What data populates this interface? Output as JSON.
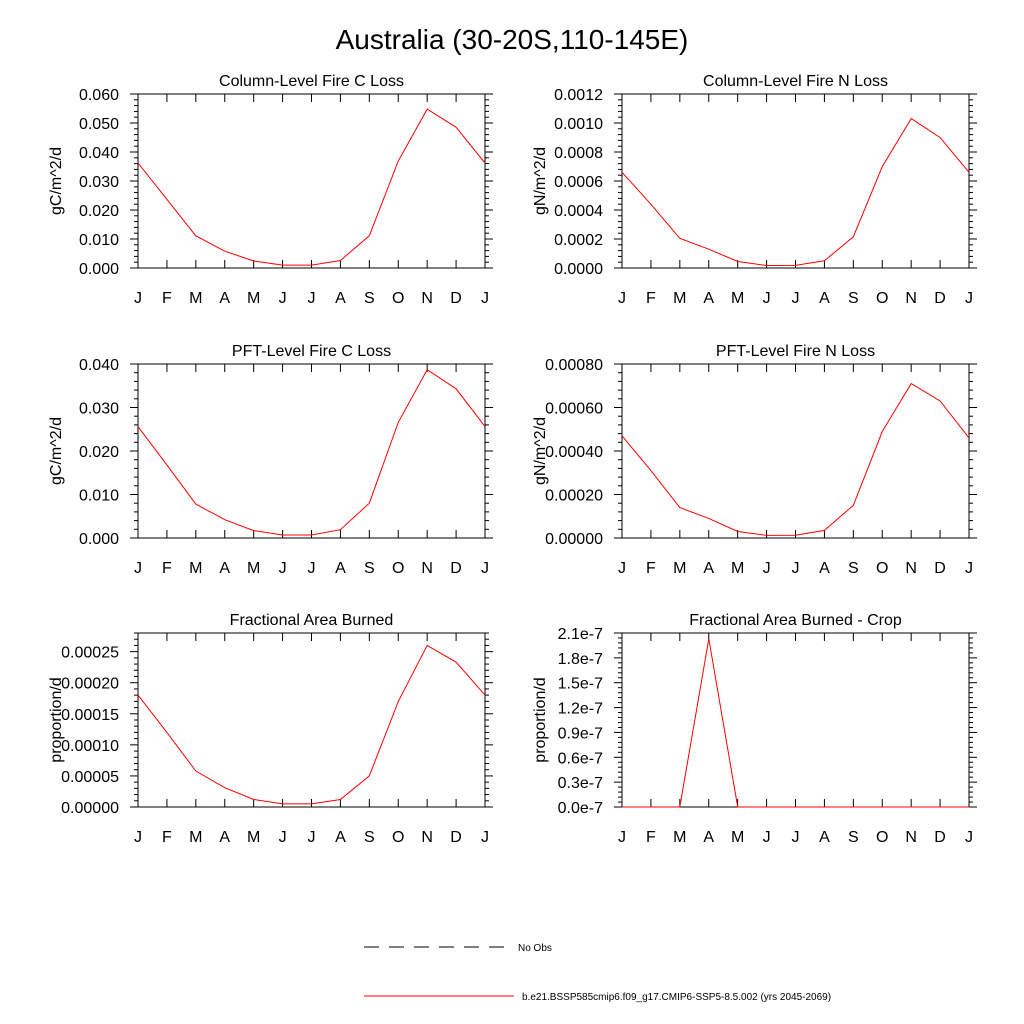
{
  "figure": {
    "title": "Australia (30-20S,110-145E)"
  },
  "legend": {
    "entries": [
      {
        "label": "No Obs",
        "style": "dashed",
        "color": "#000000"
      },
      {
        "label": "b.e21.BSSP585cmip6.f09_g17.CMIP6-SSP5-8.5.002 (yrs 2045-2069)",
        "style": "solid",
        "color": "#ff0000"
      }
    ]
  },
  "colors": {
    "series": "#ff0000",
    "axis": "#000000"
  },
  "chart_data": [
    {
      "type": "line",
      "title": "Column-Level Fire C Loss",
      "ylabel": "gC/m^2/d",
      "x": [
        "J",
        "F",
        "M",
        "A",
        "M",
        "J",
        "J",
        "A",
        "S",
        "O",
        "N",
        "D",
        "J"
      ],
      "ylim": [
        0,
        0.06
      ],
      "yticks": [
        "0.000",
        "0.010",
        "0.020",
        "0.030",
        "0.040",
        "0.050",
        "0.060"
      ],
      "series": [
        {
          "values": [
            0.0362,
            0.0237,
            0.0111,
            0.0058,
            0.0024,
            0.001,
            0.001,
            0.0026,
            0.0111,
            0.0369,
            0.0548,
            0.0485,
            0.0362
          ]
        }
      ]
    },
    {
      "type": "line",
      "title": "Column-Level Fire N Loss",
      "ylabel": "gN/m^2/d",
      "x": [
        "J",
        "F",
        "M",
        "A",
        "M",
        "J",
        "J",
        "A",
        "S",
        "O",
        "N",
        "D",
        "J"
      ],
      "ylim": [
        0,
        0.0012
      ],
      "yticks": [
        "0.0000",
        "0.0002",
        "0.0004",
        "0.0006",
        "0.0008",
        "0.0010",
        "0.0012"
      ],
      "series": [
        {
          "values": [
            0.00066,
            0.00044,
            0.000205,
            0.00013,
            4.5e-05,
            1.7e-05,
            1.8e-05,
            5e-05,
            0.000215,
            0.0007,
            0.00103,
            0.0009,
            0.00066
          ]
        }
      ]
    },
    {
      "type": "line",
      "title": "PFT-Level Fire C Loss",
      "ylabel": "gC/m^2/d",
      "x": [
        "J",
        "F",
        "M",
        "A",
        "M",
        "J",
        "J",
        "A",
        "S",
        "O",
        "N",
        "D",
        "J"
      ],
      "ylim": [
        0,
        0.04
      ],
      "yticks": [
        "0.000",
        "0.010",
        "0.020",
        "0.030",
        "0.040"
      ],
      "series": [
        {
          "values": [
            0.0256,
            0.0168,
            0.0078,
            0.0042,
            0.0017,
            0.0007,
            0.0007,
            0.0019,
            0.008,
            0.0266,
            0.0387,
            0.0343,
            0.0256
          ]
        }
      ]
    },
    {
      "type": "line",
      "title": "PFT-Level Fire N Loss",
      "ylabel": "gN/m^2/d",
      "x": [
        "J",
        "F",
        "M",
        "A",
        "M",
        "J",
        "J",
        "A",
        "S",
        "O",
        "N",
        "D",
        "J"
      ],
      "ylim": [
        0,
        0.0008
      ],
      "yticks": [
        "0.00000",
        "0.00020",
        "0.00040",
        "0.00060",
        "0.00080"
      ],
      "series": [
        {
          "values": [
            0.00047,
            0.00031,
            0.00014,
            9e-05,
            3e-05,
            1.2e-05,
            1.3e-05,
            3.5e-05,
            0.00015,
            0.00049,
            0.00071,
            0.00063,
            0.00046
          ]
        }
      ]
    },
    {
      "type": "line",
      "title": "Fractional Area Burned",
      "ylabel": "proportion/d",
      "x": [
        "J",
        "F",
        "M",
        "A",
        "M",
        "J",
        "J",
        "A",
        "S",
        "O",
        "N",
        "D",
        "J"
      ],
      "ylim": [
        0,
        0.00028
      ],
      "yticks": [
        "0.00000",
        "0.00005",
        "0.00010",
        "0.00015",
        "0.00020",
        "0.00025"
      ],
      "series": [
        {
          "values": [
            0.00018,
            0.00012,
            5.8e-05,
            3.1e-05,
            1.2e-05,
            5e-06,
            5e-06,
            1.2e-05,
            5e-05,
            0.00017,
            0.00026,
            0.000233,
            0.00018
          ]
        }
      ]
    },
    {
      "type": "line",
      "title": "Fractional Area Burned - Crop",
      "ylabel": "proportion/d",
      "x": [
        "J",
        "F",
        "M",
        "A",
        "M",
        "J",
        "J",
        "A",
        "S",
        "O",
        "N",
        "D",
        "J"
      ],
      "ylim": [
        0,
        2.1e-07
      ],
      "yticks": [
        "0.0e-7",
        "0.3e-7",
        "0.6e-7",
        "0.9e-7",
        "1.2e-7",
        "1.5e-7",
        "1.8e-7",
        "2.1e-7"
      ],
      "series": [
        {
          "values": [
            0,
            0,
            0,
            2.03e-07,
            0,
            0,
            0,
            0,
            0,
            0,
            0,
            0,
            0
          ]
        }
      ]
    }
  ]
}
